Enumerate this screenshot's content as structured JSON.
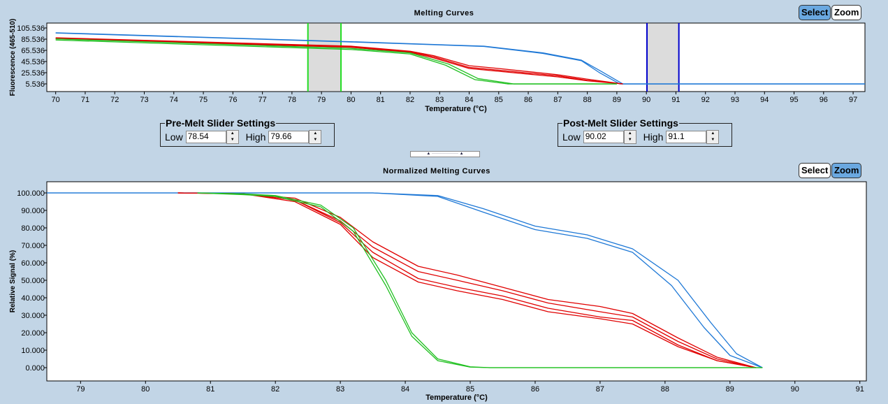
{
  "top_chart": {
    "title": "Melting Curves",
    "select_label": "Select",
    "zoom_label": "Zoom",
    "active_mode": "Select"
  },
  "bottom_chart": {
    "title": "Normalized Melting Curves",
    "select_label": "Select",
    "zoom_label": "Zoom",
    "active_mode": "Zoom"
  },
  "pre_melt": {
    "legend": "Pre-Melt Slider Settings",
    "low_label": "Low",
    "low_value": "78.54",
    "high_label": "High",
    "high_value": "79.66"
  },
  "post_melt": {
    "legend": "Post-Melt Slider Settings",
    "low_label": "Low",
    "low_value": "90.02",
    "high_label": "High",
    "high_value": "91.1"
  },
  "chart_data": [
    {
      "type": "line",
      "title": "Melting Curves",
      "xlabel": "Temperature (°C)",
      "ylabel": "Fluorescence (465-510)",
      "xlim": [
        69.7,
        97.4
      ],
      "ylim": [
        -8.2,
        114.3
      ],
      "xticks": [
        70,
        71,
        72,
        73,
        74,
        75,
        76,
        77,
        78,
        79,
        80,
        81,
        82,
        83,
        84,
        85,
        86,
        87,
        88,
        89,
        90,
        91,
        92,
        93,
        94,
        95,
        96,
        97
      ],
      "yticks": [
        "105.536",
        "85.536",
        "65.536",
        "45.536",
        "25.536",
        "5.536"
      ],
      "pre_melt_range": [
        78.54,
        79.66
      ],
      "post_melt_range": [
        90.02,
        91.1
      ],
      "series": [
        {
          "color": "#1e78d6",
          "points": [
            [
              70,
              97
            ],
            [
              80,
              81
            ],
            [
              84.5,
              73
            ],
            [
              86.5,
              61
            ],
            [
              87.8,
              48
            ],
            [
              88.5,
              27
            ],
            [
              89.2,
              5.5
            ],
            [
              97.4,
              5.5
            ]
          ]
        },
        {
          "color": "#1e78d6",
          "points": [
            [
              70,
              96.5
            ],
            [
              80,
              80.5
            ],
            [
              84.5,
              72.5
            ],
            [
              86.5,
              60
            ],
            [
              87.8,
              47
            ],
            [
              88.4,
              26
            ],
            [
              89.1,
              5.5
            ],
            [
              97.4,
              5.5
            ]
          ]
        },
        {
          "color": "#e00000",
          "points": [
            [
              70,
              88
            ],
            [
              80,
              73
            ],
            [
              82,
              64
            ],
            [
              82.8,
              56
            ],
            [
              84,
              38
            ],
            [
              85,
              33
            ],
            [
              87,
              22
            ],
            [
              88,
              14
            ],
            [
              89.2,
              5.5
            ]
          ]
        },
        {
          "color": "#e00000",
          "points": [
            [
              70,
              87
            ],
            [
              80,
              72
            ],
            [
              82,
              63
            ],
            [
              82.8,
              54
            ],
            [
              84,
              35
            ],
            [
              85,
              30
            ],
            [
              87,
              20
            ],
            [
              88,
              12
            ],
            [
              89.2,
              5.5
            ]
          ]
        },
        {
          "color": "#e00000",
          "points": [
            [
              70,
              86
            ],
            [
              80,
              71
            ],
            [
              82,
              62
            ],
            [
              82.8,
              52
            ],
            [
              84,
              33
            ],
            [
              85,
              28
            ],
            [
              87,
              18
            ],
            [
              88,
              11
            ],
            [
              89.2,
              5.5
            ]
          ]
        },
        {
          "color": "#20c020",
          "points": [
            [
              70,
              86
            ],
            [
              80,
              69
            ],
            [
              82,
              61
            ],
            [
              83.3,
              41
            ],
            [
              84.3,
              15
            ],
            [
              85.5,
              5.5
            ],
            [
              89,
              5.5
            ]
          ]
        },
        {
          "color": "#20c020",
          "points": [
            [
              70,
              84
            ],
            [
              80,
              67
            ],
            [
              82,
              59
            ],
            [
              83.2,
              39
            ],
            [
              84.2,
              13
            ],
            [
              85.3,
              5.5
            ],
            [
              89,
              5.5
            ]
          ]
        }
      ]
    },
    {
      "type": "line",
      "title": "Normalized Melting Curves",
      "xlabel": "Temperature (°C)",
      "ylabel": "Relative Signal (%)",
      "xlim": [
        78.48,
        91.1
      ],
      "ylim": [
        -7.6,
        106.4
      ],
      "xticks": [
        79,
        80,
        81,
        82,
        83,
        84,
        85,
        86,
        87,
        88,
        89,
        90,
        91
      ],
      "yticks": [
        "100.000",
        "90.000",
        "80.000",
        "70.000",
        "60.000",
        "50.000",
        "40.000",
        "30.000",
        "20.000",
        "10.000",
        "0.000"
      ],
      "series": [
        {
          "color": "#1e78d6",
          "points": [
            [
              78.48,
              100
            ],
            [
              83.5,
              100
            ],
            [
              84.5,
              98.5
            ],
            [
              85.2,
              91
            ],
            [
              86,
              81
            ],
            [
              86.8,
              76
            ],
            [
              87.5,
              68
            ],
            [
              88.2,
              50
            ],
            [
              88.7,
              26
            ],
            [
              89.1,
              8
            ],
            [
              89.5,
              0
            ]
          ]
        },
        {
          "color": "#1e78d6",
          "points": [
            [
              78.48,
              100
            ],
            [
              83.5,
              100
            ],
            [
              84.5,
              98
            ],
            [
              85.2,
              89
            ],
            [
              86,
              79
            ],
            [
              86.8,
              74
            ],
            [
              87.5,
              66
            ],
            [
              88.1,
              47
            ],
            [
              88.6,
              23
            ],
            [
              89,
              7
            ],
            [
              89.5,
              0
            ]
          ]
        },
        {
          "color": "#e00000",
          "points": [
            [
              80.5,
              100
            ],
            [
              81.5,
              99.5
            ],
            [
              82.3,
              97
            ],
            [
              83,
              86
            ],
            [
              83.5,
              72
            ],
            [
              84.2,
              58
            ],
            [
              84.8,
              53
            ],
            [
              85.5,
              46
            ],
            [
              86.2,
              39
            ],
            [
              87,
              35
            ],
            [
              87.5,
              31
            ],
            [
              88.2,
              17
            ],
            [
              88.8,
              6
            ],
            [
              89.4,
              0
            ]
          ]
        },
        {
          "color": "#e00000",
          "points": [
            [
              80.5,
              100
            ],
            [
              81.5,
              99.5
            ],
            [
              82.3,
              96
            ],
            [
              83,
              84
            ],
            [
              83.5,
              69
            ],
            [
              84.2,
              55
            ],
            [
              84.8,
              50
            ],
            [
              85.5,
              44
            ],
            [
              86.2,
              37
            ],
            [
              87,
              32
            ],
            [
              87.5,
              29
            ],
            [
              88.2,
              15
            ],
            [
              88.8,
              5
            ],
            [
              89.4,
              0
            ]
          ]
        },
        {
          "color": "#e00000",
          "points": [
            [
              80.5,
              100
            ],
            [
              81.5,
              99.5
            ],
            [
              82.3,
              96
            ],
            [
              83,
              83
            ],
            [
              83.5,
              66
            ],
            [
              84.2,
              51
            ],
            [
              84.8,
              46
            ],
            [
              85.5,
              41
            ],
            [
              86.2,
              34
            ],
            [
              87,
              29
            ],
            [
              87.5,
              27
            ],
            [
              88.2,
              13
            ],
            [
              88.8,
              4
            ],
            [
              89.4,
              0
            ]
          ]
        },
        {
          "color": "#e00000",
          "points": [
            [
              80.5,
              100
            ],
            [
              81.5,
              99.5
            ],
            [
              82.3,
              95
            ],
            [
              83,
              82
            ],
            [
              83.5,
              63
            ],
            [
              84.2,
              49
            ],
            [
              84.8,
              44
            ],
            [
              85.5,
              39
            ],
            [
              86.2,
              32
            ],
            [
              87,
              28
            ],
            [
              87.5,
              25
            ],
            [
              88.2,
              12
            ],
            [
              88.8,
              4
            ],
            [
              89.4,
              0
            ]
          ]
        },
        {
          "color": "#20c020",
          "points": [
            [
              80.8,
              100
            ],
            [
              81.5,
              99.5
            ],
            [
              82,
              98.5
            ],
            [
              82.7,
              93
            ],
            [
              83.2,
              80
            ],
            [
              83.7,
              50
            ],
            [
              84.1,
              20
            ],
            [
              84.5,
              5
            ],
            [
              85,
              0.5
            ],
            [
              85.3,
              0
            ],
            [
              89.5,
              0
            ]
          ]
        },
        {
          "color": "#20c020",
          "points": [
            [
              80.8,
              100
            ],
            [
              81.5,
              99
            ],
            [
              82,
              98
            ],
            [
              82.7,
              92
            ],
            [
              83.2,
              78
            ],
            [
              83.7,
              47
            ],
            [
              84.1,
              18
            ],
            [
              84.5,
              4
            ],
            [
              85,
              0.3
            ],
            [
              85.3,
              0
            ],
            [
              89.5,
              0
            ]
          ]
        }
      ]
    }
  ]
}
